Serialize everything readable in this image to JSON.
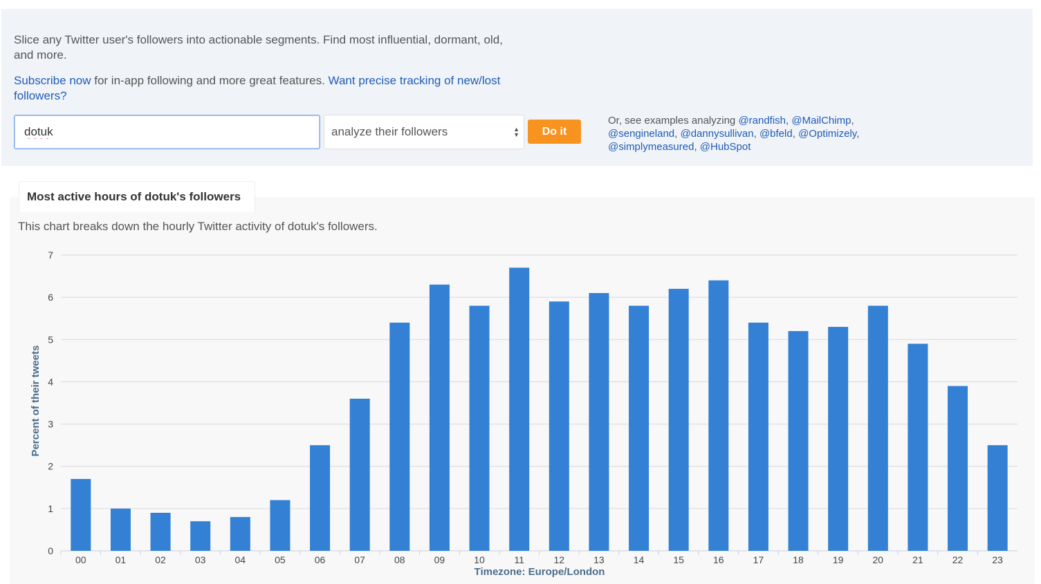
{
  "intro": {
    "text": "Slice any Twitter user's followers into actionable segments. Find most influential, dormant, old, and more."
  },
  "subscribe": {
    "link_text": "Subscribe now",
    "middle_text": " for in-app following and more great features. ",
    "tracking_link": "Want precise tracking of new/lost followers?"
  },
  "search": {
    "value": "dotuk",
    "mode_selected": "analyze their followers",
    "submit_label": "Do it"
  },
  "examples": {
    "prefix": "Or, see examples analyzing ",
    "accounts": [
      "@randfish",
      "@MailChimp",
      "@sengineland",
      "@dannysullivan",
      "@bfeld",
      "@Optimizely",
      "@simplymeasured",
      "@HubSpot"
    ]
  },
  "chart_section": {
    "tab_title": "Most active hours of dotuk's followers",
    "description": "This chart breaks down the hourly Twitter activity of dotuk's followers."
  },
  "chart_data": {
    "type": "bar",
    "categories": [
      "00",
      "01",
      "02",
      "03",
      "04",
      "05",
      "06",
      "07",
      "08",
      "09",
      "10",
      "11",
      "12",
      "13",
      "14",
      "15",
      "16",
      "17",
      "18",
      "19",
      "20",
      "21",
      "22",
      "23"
    ],
    "values": [
      1.7,
      1.0,
      0.9,
      0.7,
      0.8,
      1.2,
      2.5,
      3.6,
      5.4,
      6.3,
      5.8,
      6.7,
      5.9,
      6.1,
      5.8,
      6.2,
      6.4,
      5.4,
      5.2,
      5.3,
      5.8,
      4.9,
      3.9,
      2.5
    ],
    "xlabel": "Timezone: Europe/London",
    "ylabel": "Percent of their tweets",
    "ylim": [
      0,
      7
    ],
    "yticks": [
      "0",
      "1",
      "2",
      "3",
      "4",
      "5",
      "6",
      "7"
    ],
    "grid": true,
    "bar_color": "#3380d4"
  }
}
